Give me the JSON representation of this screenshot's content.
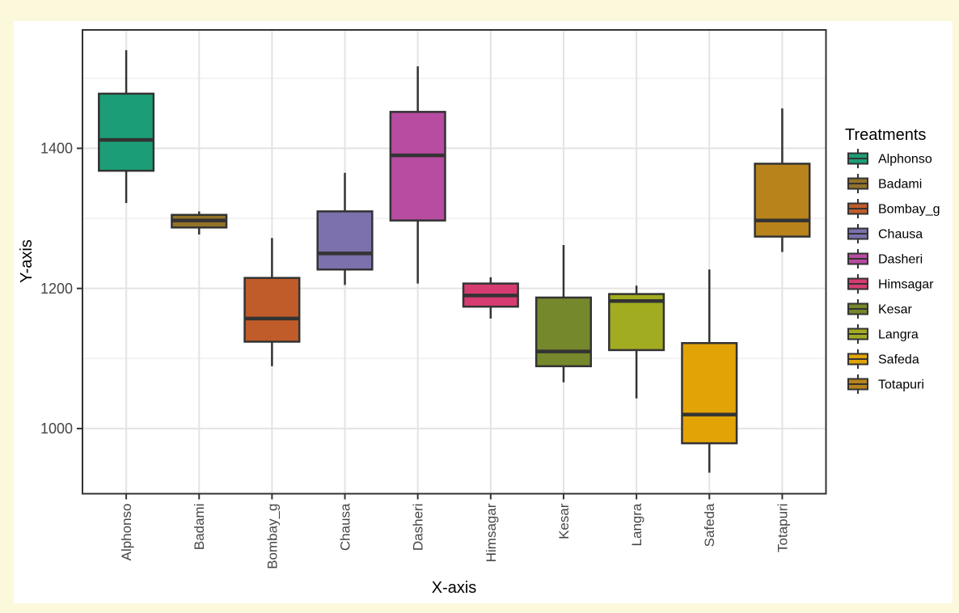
{
  "page": {
    "background_color": "#FCF8DB",
    "figure_background_color": "#FFFFFF"
  },
  "chart_data": {
    "type": "boxplot",
    "title": "",
    "xlabel": "X-axis",
    "ylabel": "Y-axis",
    "legend_title": "Treatments",
    "legend_position": "right",
    "grid": true,
    "ylim": [
      907,
      1569
    ],
    "y_major_ticks": [
      1000,
      1200,
      1400
    ],
    "y_minor_gridlines": [
      1100,
      1300,
      1500
    ],
    "categories": [
      "Alphonso",
      "Badami",
      "Bombay_g",
      "Chausa",
      "Dasheri",
      "Himsagar",
      "Kesar",
      "Langra",
      "Safeda",
      "Totapuri"
    ],
    "series": [
      {
        "name": "Alphonso",
        "color": "#1B9E77",
        "min": 1322,
        "q1": 1368,
        "median": 1412,
        "q3": 1478,
        "max": 1540
      },
      {
        "name": "Badami",
        "color": "#937329",
        "min": 1277,
        "q1": 1287,
        "median": 1297,
        "q3": 1305,
        "max": 1310
      },
      {
        "name": "Bombay_g",
        "color": "#C05C29",
        "min": 1089,
        "q1": 1124,
        "median": 1157,
        "q3": 1215,
        "max": 1272
      },
      {
        "name": "Chausa",
        "color": "#7C70AD",
        "min": 1205,
        "q1": 1227,
        "median": 1250,
        "q3": 1310,
        "max": 1365
      },
      {
        "name": "Dasheri",
        "color": "#B74CA1",
        "min": 1207,
        "q1": 1297,
        "median": 1390,
        "q3": 1452,
        "max": 1517
      },
      {
        "name": "Himsagar",
        "color": "#D63C72",
        "min": 1157,
        "q1": 1174,
        "median": 1190,
        "q3": 1207,
        "max": 1216
      },
      {
        "name": "Kesar",
        "color": "#75882B",
        "min": 1066,
        "q1": 1089,
        "median": 1110,
        "q3": 1187,
        "max": 1262
      },
      {
        "name": "Langra",
        "color": "#A2AC20",
        "min": 1043,
        "q1": 1112,
        "median": 1182,
        "q3": 1192,
        "max": 1204
      },
      {
        "name": "Safeda",
        "color": "#E2A306",
        "min": 937,
        "q1": 979,
        "median": 1020,
        "q3": 1122,
        "max": 1227
      },
      {
        "name": "Totapuri",
        "color": "#B9831B",
        "min": 1252,
        "q1": 1274,
        "median": 1297,
        "q3": 1378,
        "max": 1457
      }
    ],
    "style": {
      "box_stroke_color": "#333333",
      "panel_border_color": "#333333",
      "grid_major_color": "#E3E3E3",
      "grid_minor_color": "#F1F1F1",
      "tick_color": "#333333",
      "tick_label_color": "#454545",
      "axis_title_color": "#000000",
      "legend_text_color": "#000000"
    }
  }
}
